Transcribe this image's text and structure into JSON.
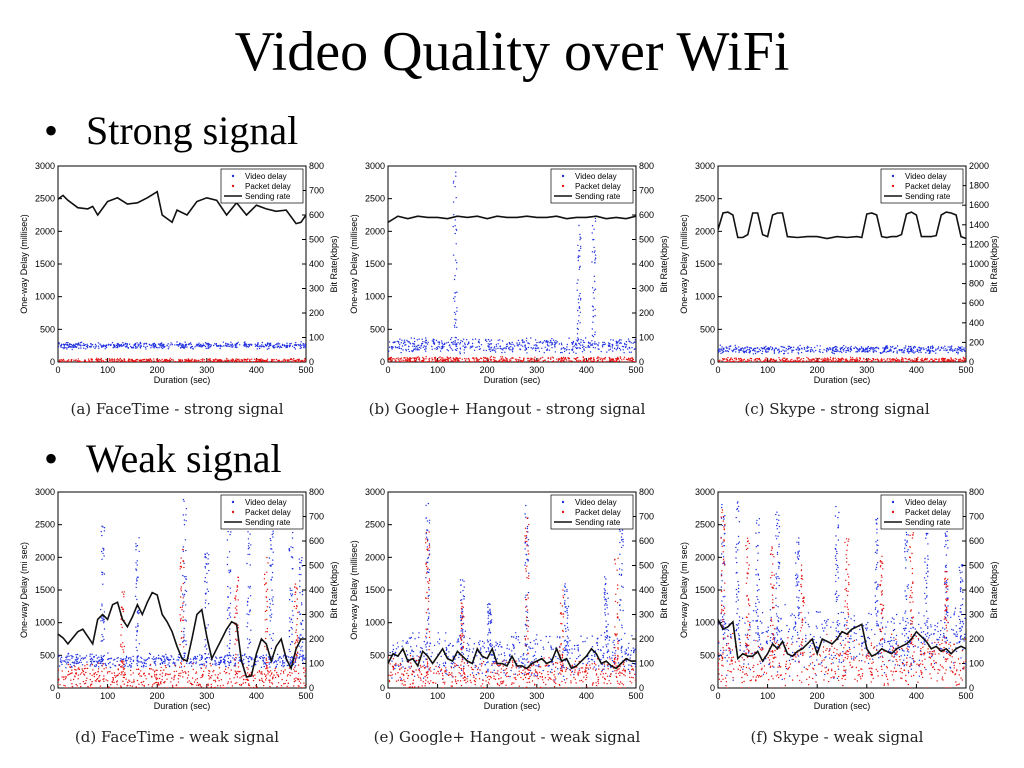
{
  "slide": {
    "title": "Video Quality over WiFi",
    "bullets": [
      "Strong signal",
      "Weak signal"
    ],
    "bullet_glyph": "•"
  },
  "colors": {
    "video": "#1f2fe0",
    "packet": "#e51212",
    "rate": "#111111"
  },
  "chart_data": [
    {
      "id": "a",
      "type": "scatter+line",
      "caption": "(a) FaceTime - strong signal",
      "xlabel": "Duration (sec)",
      "ylabel": "One-way Delay (millisec)",
      "y2label": "Bit Rate(kbps)",
      "xlim": [
        0,
        500
      ],
      "ylim": [
        0,
        3000
      ],
      "y2lim": [
        0,
        800
      ],
      "xticks": [
        0,
        100,
        200,
        300,
        400,
        500
      ],
      "yticks": [
        0,
        500,
        1000,
        1500,
        2000,
        2500,
        3000
      ],
      "y2ticks": [
        0,
        100,
        200,
        300,
        400,
        500,
        600,
        700,
        800
      ],
      "legend": [
        "Video delay",
        "Packet delay",
        "Sending rate"
      ],
      "legend_position": "top-right",
      "video_delay": {
        "base": 250,
        "spread": 60,
        "spikes": []
      },
      "packet_delay": {
        "base": 20,
        "spread": 40,
        "spikes": []
      },
      "sending_rate": {
        "x": [
          0,
          10,
          20,
          40,
          60,
          70,
          80,
          100,
          120,
          140,
          160,
          180,
          200,
          210,
          230,
          240,
          260,
          280,
          300,
          320,
          340,
          360,
          380,
          400,
          420,
          440,
          460,
          480,
          490,
          500
        ],
        "y": [
          665,
          680,
          660,
          630,
          625,
          635,
          600,
          655,
          670,
          645,
          650,
          670,
          695,
          600,
          570,
          620,
          600,
          655,
          670,
          660,
          600,
          650,
          600,
          640,
          625,
          615,
          620,
          565,
          570,
          600
        ]
      }
    },
    {
      "id": "b",
      "type": "scatter+line",
      "caption": "(b) Google+ Hangout - strong signal",
      "xlabel": "Duration (sec)",
      "ylabel": "One-way Delay (millisec)",
      "y2label": "Bit Rate(kbps)",
      "xlim": [
        0,
        500
      ],
      "ylim": [
        0,
        3000
      ],
      "y2lim": [
        0,
        800
      ],
      "xticks": [
        0,
        100,
        200,
        300,
        400,
        500
      ],
      "yticks": [
        0,
        500,
        1000,
        1500,
        2000,
        2500,
        3000
      ],
      "y2ticks": [
        0,
        100,
        200,
        300,
        400,
        500,
        600,
        700,
        800
      ],
      "legend": [
        "Video delay",
        "Packet delay",
        "Sending rate"
      ],
      "legend_position": "top-right",
      "video_delay": {
        "base": 250,
        "spread": 130,
        "spikes": [
          [
            135,
            2950
          ],
          [
            385,
            2100
          ],
          [
            415,
            2200
          ]
        ]
      },
      "packet_delay": {
        "base": 30,
        "spread": 60,
        "spikes": []
      },
      "sending_rate": {
        "x": [
          0,
          20,
          40,
          60,
          80,
          100,
          120,
          140,
          160,
          180,
          200,
          220,
          240,
          260,
          280,
          300,
          320,
          340,
          360,
          380,
          400,
          420,
          440,
          460,
          480,
          500
        ],
        "y": [
          570,
          595,
          585,
          595,
          590,
          590,
          585,
          595,
          590,
          595,
          585,
          595,
          590,
          590,
          595,
          590,
          590,
          595,
          585,
          590,
          590,
          595,
          585,
          590,
          585,
          595
        ]
      }
    },
    {
      "id": "c",
      "type": "scatter+line",
      "caption": "(c) Skype - strong signal",
      "xlabel": "Duration (sec)",
      "ylabel": "One-way Delay (millisec)",
      "y2label": "Bit Rate(kbps)",
      "xlim": [
        0,
        500
      ],
      "ylim": [
        0,
        3000
      ],
      "y2lim": [
        0,
        2000
      ],
      "xticks": [
        0,
        100,
        200,
        300,
        400,
        500
      ],
      "yticks": [
        0,
        500,
        1000,
        1500,
        2000,
        2500,
        3000
      ],
      "y2ticks": [
        0,
        200,
        400,
        600,
        800,
        1000,
        1200,
        1400,
        1600,
        1800,
        2000
      ],
      "legend": [
        "Video delay",
        "Packet delay",
        "Sending rate"
      ],
      "legend_position": "top-right",
      "video_delay": {
        "base": 190,
        "spread": 70,
        "spikes": []
      },
      "packet_delay": {
        "base": 25,
        "spread": 50,
        "spikes": []
      },
      "sending_rate": {
        "x": [
          0,
          10,
          20,
          30,
          40,
          50,
          60,
          70,
          80,
          90,
          100,
          110,
          120,
          130,
          140,
          160,
          180,
          200,
          220,
          240,
          260,
          280,
          290,
          300,
          310,
          320,
          330,
          340,
          350,
          360,
          370,
          380,
          390,
          400,
          410,
          420,
          430,
          440,
          450,
          460,
          470,
          480,
          490,
          500
        ],
        "y": [
          1350,
          1520,
          1530,
          1500,
          1270,
          1270,
          1300,
          1520,
          1520,
          1300,
          1280,
          1500,
          1520,
          1520,
          1280,
          1270,
          1280,
          1280,
          1260,
          1280,
          1270,
          1280,
          1270,
          1510,
          1520,
          1500,
          1280,
          1270,
          1280,
          1280,
          1300,
          1510,
          1530,
          1500,
          1280,
          1280,
          1280,
          1290,
          1500,
          1530,
          1520,
          1500,
          1280,
          1260
        ]
      }
    },
    {
      "id": "d",
      "type": "scatter+line",
      "caption": "(d) FaceTime - weak signal",
      "xlabel": "Duration (sec)",
      "ylabel": "One-way Delay (mi sec)",
      "y2label": "Bit Rate(kbps)",
      "xlim": [
        0,
        500
      ],
      "ylim": [
        0,
        3000
      ],
      "y2lim": [
        0,
        800
      ],
      "xticks": [
        0,
        100,
        200,
        300,
        400,
        500
      ],
      "yticks": [
        0,
        500,
        1000,
        1500,
        2000,
        2500,
        3000
      ],
      "y2ticks": [
        0,
        100,
        200,
        300,
        400,
        500,
        600,
        700,
        800
      ],
      "legend": [
        "Video delay",
        "Packet delay",
        "Sending rate"
      ],
      "legend_position": "top-right",
      "video_delay": {
        "base": 420,
        "spread": 120,
        "spikes": [
          [
            90,
            2500
          ],
          [
            160,
            2300
          ],
          [
            255,
            2900
          ],
          [
            300,
            2100
          ],
          [
            345,
            2700
          ],
          [
            385,
            2500
          ],
          [
            430,
            2600
          ],
          [
            470,
            2400
          ],
          [
            490,
            2000
          ]
        ]
      },
      "packet_delay": {
        "base": 150,
        "spread": 250,
        "spikes": [
          [
            130,
            1500
          ],
          [
            250,
            2200
          ],
          [
            360,
            1700
          ],
          [
            420,
            2000
          ],
          [
            480,
            1600
          ]
        ]
      },
      "sending_rate": {
        "x": [
          0,
          10,
          20,
          30,
          40,
          50,
          60,
          70,
          80,
          90,
          100,
          110,
          120,
          130,
          140,
          150,
          160,
          170,
          180,
          190,
          200,
          210,
          220,
          230,
          240,
          250,
          260,
          270,
          280,
          290,
          300,
          310,
          320,
          330,
          340,
          350,
          360,
          370,
          380,
          390,
          400,
          410,
          420,
          430,
          440,
          450,
          460,
          470,
          480,
          490,
          500
        ],
        "y": [
          220,
          205,
          180,
          205,
          230,
          240,
          210,
          180,
          280,
          300,
          280,
          340,
          350,
          280,
          250,
          290,
          340,
          300,
          350,
          390,
          380,
          300,
          270,
          230,
          170,
          120,
          110,
          200,
          300,
          320,
          210,
          120,
          160,
          200,
          240,
          270,
          260,
          110,
          45,
          50,
          140,
          200,
          180,
          110,
          170,
          200,
          120,
          80,
          160,
          200,
          200
        ]
      }
    },
    {
      "id": "e",
      "type": "scatter+line",
      "caption": "(e) Google+ Hangout - weak signal",
      "xlabel": "Duration (sec)",
      "ylabel": "One-way Delay (millisec)",
      "y2label": "Bit Rate(kbps)",
      "xlim": [
        0,
        500
      ],
      "ylim": [
        0,
        3000
      ],
      "y2lim": [
        0,
        800
      ],
      "xticks": [
        0,
        100,
        200,
        300,
        400,
        500
      ],
      "yticks": [
        0,
        500,
        1000,
        1500,
        2000,
        2500,
        3000
      ],
      "y2ticks": [
        0,
        100,
        200,
        300,
        400,
        500,
        600,
        700,
        800
      ],
      "legend": [
        "Video delay",
        "Packet delay",
        "Sending rate"
      ],
      "legend_position": "top-right",
      "video_delay": {
        "base": 500,
        "spread": 400,
        "spikes": [
          [
            80,
            2900
          ],
          [
            150,
            1700
          ],
          [
            205,
            1300
          ],
          [
            280,
            2900
          ],
          [
            360,
            1600
          ],
          [
            440,
            1700
          ],
          [
            470,
            2700
          ]
        ]
      },
      "packet_delay": {
        "base": 200,
        "spread": 300,
        "spikes": [
          [
            80,
            2400
          ],
          [
            150,
            1300
          ],
          [
            280,
            2600
          ],
          [
            350,
            1500
          ],
          [
            460,
            2000
          ]
        ]
      },
      "sending_rate": {
        "x": [
          0,
          10,
          20,
          30,
          40,
          50,
          60,
          70,
          80,
          90,
          100,
          110,
          120,
          130,
          140,
          150,
          160,
          170,
          180,
          190,
          200,
          210,
          220,
          230,
          240,
          250,
          260,
          270,
          280,
          290,
          300,
          310,
          320,
          330,
          340,
          350,
          360,
          370,
          380,
          390,
          400,
          410,
          420,
          430,
          440,
          450,
          460,
          470,
          480,
          490,
          500
        ],
        "y": [
          100,
          140,
          130,
          160,
          110,
          120,
          90,
          150,
          130,
          100,
          130,
          160,
          120,
          110,
          150,
          130,
          110,
          100,
          160,
          130,
          120,
          160,
          100,
          100,
          90,
          130,
          90,
          90,
          80,
          100,
          110,
          120,
          100,
          110,
          160,
          110,
          120,
          80,
          90,
          110,
          130,
          160,
          140,
          100,
          110,
          90,
          80,
          100,
          120,
          110,
          110
        ]
      }
    },
    {
      "id": "f",
      "type": "scatter+line",
      "caption": "(f) Skype - weak signal",
      "xlabel": "Duration (sec)",
      "ylabel": "One-way Delay (mi sec)",
      "y2label": "Bit Rate(kbps)",
      "xlim": [
        0,
        500
      ],
      "ylim": [
        0,
        3000
      ],
      "y2lim": [
        0,
        800
      ],
      "xticks": [
        0,
        100,
        200,
        300,
        400,
        500
      ],
      "yticks": [
        0,
        500,
        1000,
        1500,
        2000,
        2500,
        3000
      ],
      "y2ticks": [
        0,
        100,
        200,
        300,
        400,
        500,
        600,
        700,
        800
      ],
      "legend": [
        "Video delay",
        "Packet delay",
        "Sending rate"
      ],
      "legend_position": "top-right",
      "video_delay": {
        "base": 700,
        "spread": 600,
        "spikes": [
          [
            10,
            3000
          ],
          [
            40,
            2900
          ],
          [
            80,
            2600
          ],
          [
            120,
            2900
          ],
          [
            160,
            2300
          ],
          [
            240,
            2800
          ],
          [
            320,
            2600
          ],
          [
            380,
            2800
          ],
          [
            420,
            2700
          ],
          [
            460,
            2400
          ],
          [
            490,
            1900
          ]
        ]
      },
      "packet_delay": {
        "base": 400,
        "spread": 500,
        "spikes": [
          [
            10,
            2900
          ],
          [
            60,
            2400
          ],
          [
            110,
            2200
          ],
          [
            170,
            2000
          ],
          [
            260,
            2300
          ],
          [
            330,
            2100
          ],
          [
            390,
            2400
          ],
          [
            460,
            1800
          ]
        ]
      },
      "sending_rate": {
        "x": [
          0,
          10,
          20,
          30,
          40,
          50,
          60,
          70,
          80,
          90,
          100,
          110,
          120,
          130,
          140,
          150,
          160,
          170,
          180,
          190,
          200,
          210,
          220,
          230,
          240,
          250,
          260,
          270,
          280,
          290,
          300,
          310,
          320,
          330,
          340,
          350,
          360,
          370,
          380,
          390,
          400,
          410,
          420,
          430,
          440,
          450,
          460,
          470,
          480,
          490,
          500
        ],
        "y": [
          280,
          240,
          250,
          270,
          120,
          140,
          130,
          130,
          150,
          110,
          140,
          180,
          160,
          190,
          140,
          130,
          150,
          160,
          180,
          200,
          140,
          200,
          190,
          180,
          200,
          230,
          220,
          240,
          250,
          260,
          160,
          130,
          140,
          160,
          150,
          140,
          160,
          170,
          180,
          200,
          230,
          210,
          190,
          160,
          170,
          150,
          160,
          140,
          160,
          170,
          160
        ]
      }
    }
  ]
}
